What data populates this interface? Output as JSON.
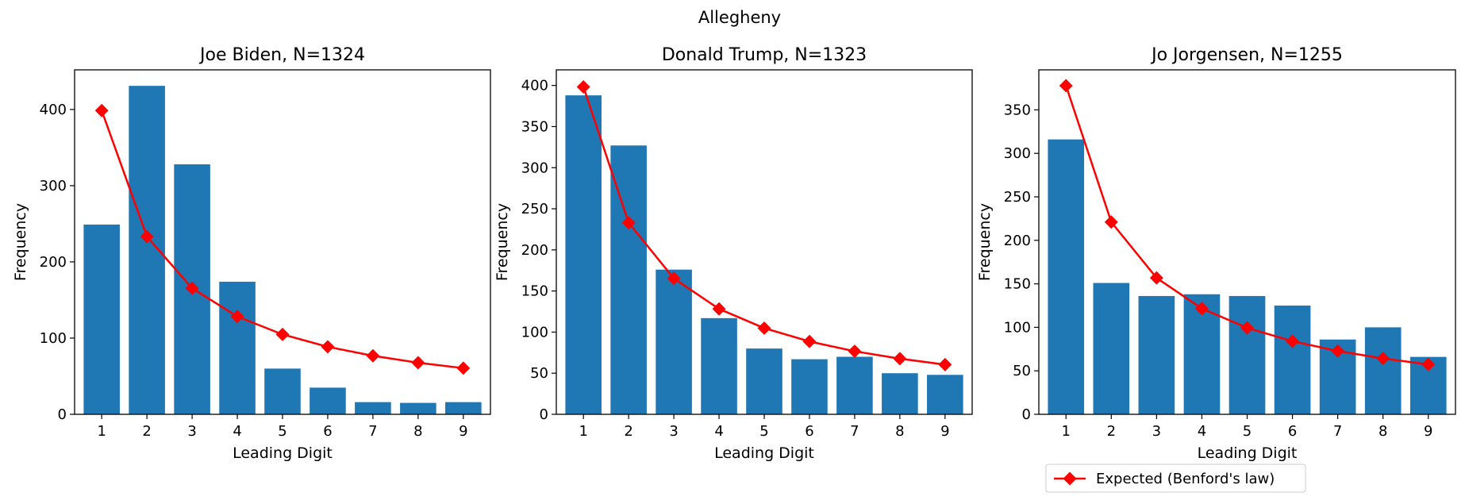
{
  "figure": {
    "suptitle": "Allegheny"
  },
  "colors": {
    "bar": "#1f77b4",
    "expected": "#ff0000",
    "axis": "#000000"
  },
  "legend": {
    "label": "Expected (Benford's law)",
    "placement": "below-right-panel"
  },
  "chart_data": [
    {
      "type": "bar",
      "title": "Joe Biden, N=1324",
      "xlabel": "Leading Digit",
      "ylabel": "Frequency",
      "categories": [
        "1",
        "2",
        "3",
        "4",
        "5",
        "6",
        "7",
        "8",
        "9"
      ],
      "ylim": [
        0,
        452
      ],
      "yticks": [
        0,
        100,
        200,
        300,
        400
      ],
      "series": [
        {
          "values": [
            249,
            431,
            328,
            174,
            60,
            35,
            16,
            15,
            16
          ]
        },
        {
          "name": "Expected (Benford's law)",
          "kind": "line",
          "values": [
            398.6,
            233.2,
            165.4,
            128.3,
            104.8,
            88.6,
            76.8,
            67.7,
            60.6
          ]
        }
      ]
    },
    {
      "type": "bar",
      "title": "Donald Trump, N=1323",
      "xlabel": "Leading Digit",
      "ylabel": "Frequency",
      "categories": [
        "1",
        "2",
        "3",
        "4",
        "5",
        "6",
        "7",
        "8",
        "9"
      ],
      "ylim": [
        0,
        419
      ],
      "yticks": [
        0,
        50,
        100,
        150,
        200,
        250,
        300,
        350,
        400
      ],
      "series": [
        {
          "values": [
            388,
            327,
            176,
            117,
            80,
            67,
            70,
            50,
            48
          ]
        },
        {
          "name": "Expected (Benford's law)",
          "kind": "line",
          "values": [
            398.3,
            233.0,
            165.3,
            128.2,
            104.8,
            88.6,
            76.7,
            67.7,
            60.5
          ]
        }
      ]
    },
    {
      "type": "bar",
      "title": "Jo Jorgensen, N=1255",
      "xlabel": "Leading Digit",
      "ylabel": "Frequency",
      "categories": [
        "1",
        "2",
        "3",
        "4",
        "5",
        "6",
        "7",
        "8",
        "9"
      ],
      "ylim": [
        0,
        396
      ],
      "yticks": [
        0,
        50,
        100,
        150,
        200,
        250,
        300,
        350
      ],
      "series": [
        {
          "values": [
            316,
            151,
            136,
            138,
            136,
            125,
            86,
            100,
            66
          ]
        },
        {
          "name": "Expected (Benford's law)",
          "kind": "line",
          "values": [
            377.8,
            221.0,
            156.8,
            121.6,
            99.4,
            84.0,
            72.8,
            64.2,
            57.4
          ]
        }
      ]
    }
  ]
}
